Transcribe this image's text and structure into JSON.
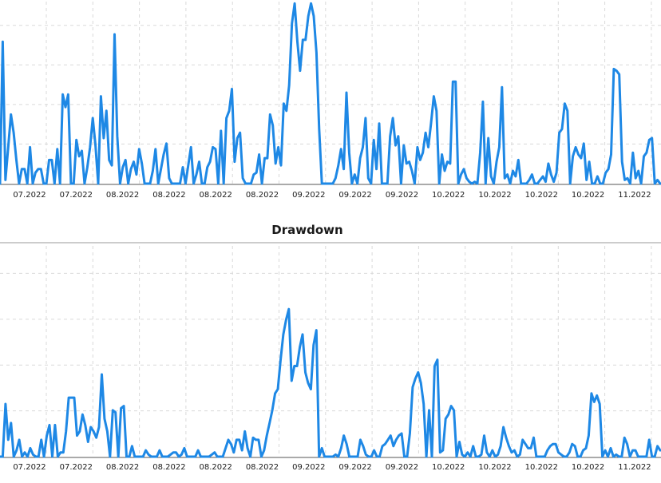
{
  "colors": {
    "series": "#1e88e5",
    "grid": "#d9d9d9",
    "axis": "#555555"
  },
  "chart_data": [
    {
      "type": "line",
      "title": "",
      "xlabel": "",
      "ylabel": "",
      "grid": true,
      "ylim": [
        0,
        100
      ],
      "x_tick_labels": [
        "07.2022",
        "07.2022",
        "08.2022",
        "08.2022",
        "08.2022",
        "08.2022",
        "09.2022",
        "09.2022",
        "09.2022",
        "10.2022",
        "10.2022",
        "10.2022",
        "10.2022",
        "11.2022"
      ],
      "series": [
        {
          "values": [
            0,
            78,
            2,
            20,
            38,
            28,
            13,
            0,
            8,
            8,
            0,
            20,
            0,
            6,
            8,
            8,
            0,
            0,
            13,
            13,
            0,
            19,
            0,
            49,
            42,
            49,
            0,
            0,
            24,
            15,
            18,
            0,
            9,
            20,
            36,
            21,
            0,
            48,
            25,
            40,
            13,
            10,
            82,
            26,
            0,
            9,
            13,
            0,
            8,
            12,
            5,
            19,
            11,
            0,
            0,
            0,
            7,
            19,
            0,
            8,
            16,
            22,
            3,
            0,
            0,
            0,
            0,
            9,
            0,
            10,
            20,
            0,
            5,
            12,
            0,
            0,
            9,
            12,
            20,
            19,
            0,
            29,
            0,
            36,
            40,
            52,
            12,
            25,
            28,
            3,
            0,
            0,
            0,
            5,
            6,
            16,
            0,
            14,
            14,
            38,
            32,
            11,
            20,
            10,
            44,
            40,
            54,
            88,
            99,
            78,
            62,
            79,
            79,
            92,
            99,
            92,
            72,
            30,
            0,
            0,
            0,
            0,
            0,
            3,
            10,
            19,
            8,
            50,
            17,
            0,
            5,
            0,
            14,
            20,
            36,
            3,
            0,
            24,
            8,
            33,
            0,
            0,
            0,
            26,
            36,
            21,
            26,
            0,
            21,
            11,
            12,
            7,
            0,
            20,
            13,
            17,
            28,
            20,
            33,
            48,
            40,
            0,
            16,
            7,
            12,
            11,
            56,
            56,
            0,
            5,
            8,
            3,
            1,
            0,
            1,
            0,
            17,
            45,
            0,
            25,
            4,
            0,
            12,
            20,
            53,
            3,
            5,
            0,
            7,
            4,
            13,
            0,
            0,
            0,
            2,
            5,
            0,
            0,
            2,
            4,
            1,
            11,
            5,
            1,
            6,
            28,
            30,
            44,
            40,
            0,
            15,
            20,
            16,
            14,
            22,
            2,
            12,
            0,
            0,
            4,
            0,
            0,
            6,
            8,
            16,
            63,
            62,
            60,
            12,
            2,
            3,
            0,
            17,
            3,
            7,
            0,
            15,
            17,
            24,
            25,
            0,
            2,
            0
          ]
        }
      ]
    },
    {
      "type": "line",
      "title": "Drawdown",
      "xlabel": "",
      "ylabel": "",
      "grid": true,
      "ylim": [
        0,
        100
      ],
      "x_tick_labels": [
        "07.2022",
        "07.2022",
        "08.2022",
        "08.2022",
        "08.2022",
        "08.2022",
        "09.2022",
        "09.2022",
        "09.2022",
        "10.2022",
        "10.2022",
        "10.2022",
        "10.2022",
        "11.2022"
      ],
      "series": [
        {
          "values": [
            0,
            0,
            25,
            8,
            16,
            0,
            3,
            8,
            0,
            2,
            0,
            4,
            1,
            0,
            0,
            8,
            0,
            10,
            15,
            0,
            15,
            0,
            2,
            2,
            12,
            28,
            28,
            28,
            10,
            12,
            20,
            15,
            7,
            14,
            12,
            9,
            14,
            39,
            18,
            12,
            0,
            22,
            21,
            0,
            23,
            24,
            0,
            0,
            5,
            0,
            0,
            0,
            0,
            3,
            1,
            0,
            0,
            0,
            3,
            0,
            0,
            0,
            1,
            2,
            2,
            0,
            1,
            4,
            0,
            0,
            0,
            0,
            3,
            0,
            0,
            0,
            0,
            1,
            2,
            0,
            0,
            0,
            4,
            8,
            6,
            2,
            8,
            8,
            3,
            12,
            4,
            0,
            9,
            8,
            8,
            0,
            3,
            10,
            16,
            22,
            30,
            32,
            46,
            58,
            65,
            70,
            36,
            43,
            43,
            52,
            58,
            40,
            35,
            32,
            53,
            60,
            0,
            4,
            0,
            0,
            0,
            0,
            1,
            0,
            4,
            10,
            6,
            0,
            0,
            0,
            0,
            8,
            5,
            1,
            0,
            0,
            3,
            0,
            0,
            5,
            6,
            8,
            10,
            5,
            8,
            10,
            11,
            0,
            0,
            11,
            33,
            37,
            40,
            35,
            25,
            0,
            22,
            0,
            43,
            46,
            2,
            3,
            18,
            20,
            24,
            22,
            0,
            7,
            1,
            0,
            2,
            0,
            5,
            0,
            0,
            1,
            10,
            2,
            0,
            3,
            0,
            1,
            5,
            14,
            9,
            5,
            2,
            3,
            0,
            1,
            8,
            6,
            4,
            4,
            9,
            0,
            0,
            0,
            0,
            3,
            5,
            6,
            6,
            2,
            1,
            0,
            0,
            2,
            6,
            5,
            0,
            0,
            3,
            4,
            10,
            30,
            26,
            29,
            25,
            0,
            3,
            0,
            4,
            0,
            1,
            0,
            0,
            9,
            6,
            0,
            3,
            3,
            0,
            0,
            0,
            0,
            8,
            0,
            0,
            5,
            3
          ]
        }
      ]
    }
  ]
}
